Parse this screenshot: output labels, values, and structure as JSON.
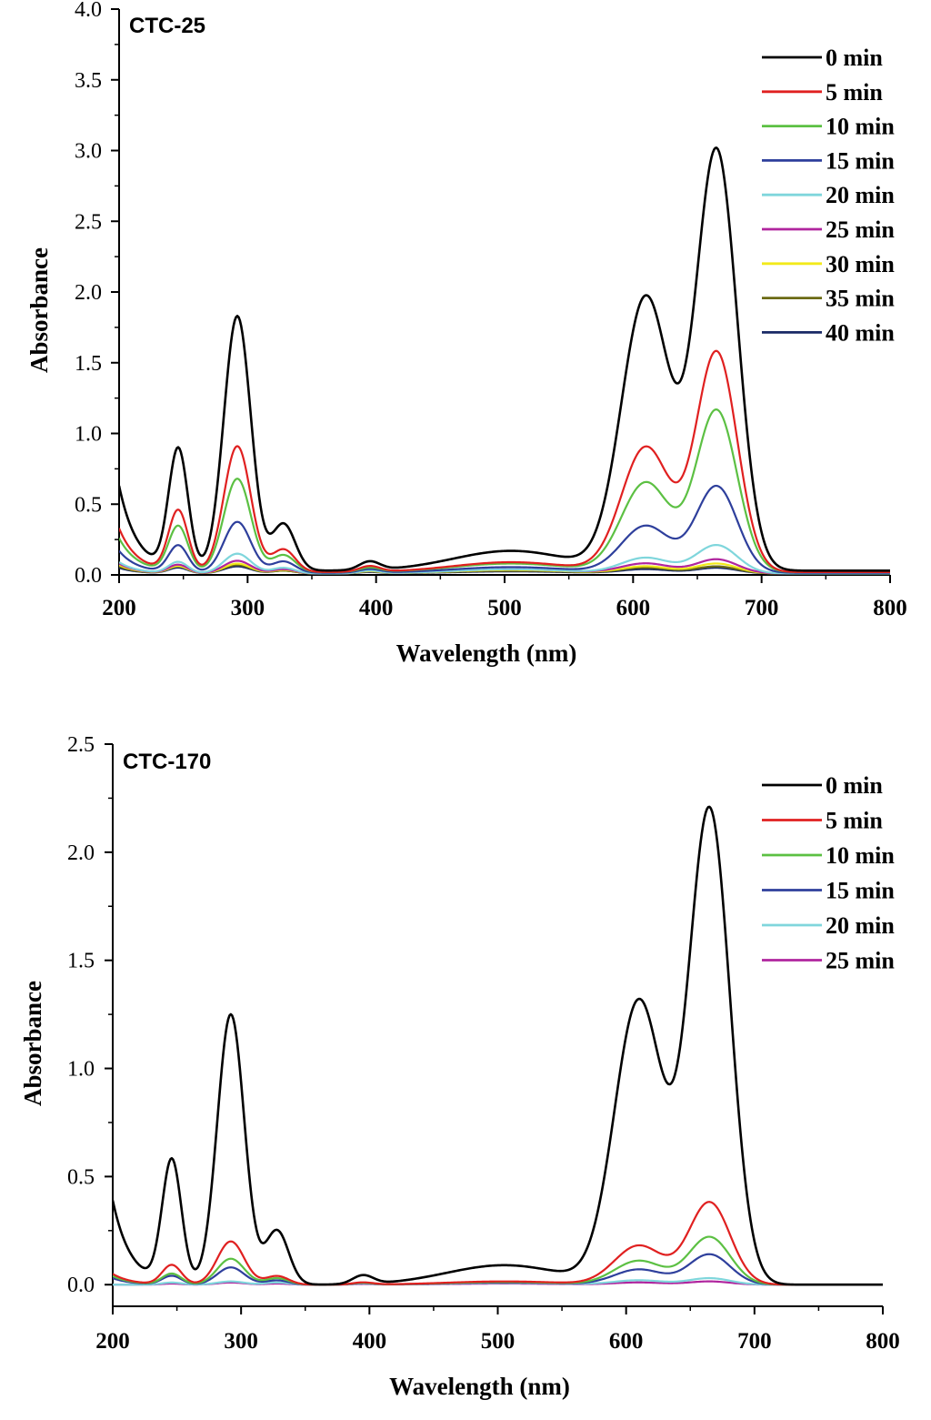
{
  "colors": {
    "0 min": "#000000",
    "5 min": "#e02020",
    "10 min": "#5cc043",
    "15 min": "#2e3f9c",
    "20 min": "#7fd6dc",
    "25 min": "#b0259e",
    "30 min": "#f2ea1a",
    "35 min": "#6b6a14",
    "40 min": "#1a2a66"
  },
  "chart_data": [
    {
      "type": "line",
      "panel_label": "CTC-25",
      "xlabel": "Wavelength (nm)",
      "ylabel": "Absorbance",
      "xlim": [
        200,
        800
      ],
      "ylim": [
        0,
        4.0
      ],
      "xticks": [
        "200",
        "300",
        "400",
        "500",
        "600",
        "700",
        "800"
      ],
      "yticks": [
        "0.0",
        "0.5",
        "1.0",
        "1.5",
        "2.0",
        "2.5",
        "3.0",
        "3.5",
        "4.0"
      ],
      "legend_position": "top-right",
      "grid": false,
      "series": [
        {
          "name": "0 min",
          "peaks": {
            "base": 0.03,
            "start": 0.63,
            "p245": 0.85,
            "p292": 1.8,
            "p330": 0.33,
            "p395": 0.06,
            "p500": 0.14,
            "p612": 1.93,
            "p663": 2.96
          }
        },
        {
          "name": "5 min",
          "peaks": {
            "base": 0.02,
            "start": 0.33,
            "p245": 0.43,
            "p292": 0.89,
            "p330": 0.16,
            "p395": 0.04,
            "p500": 0.07,
            "p612": 0.88,
            "p663": 1.55
          }
        },
        {
          "name": "10 min",
          "peaks": {
            "base": 0.02,
            "start": 0.26,
            "p245": 0.32,
            "p292": 0.66,
            "p330": 0.12,
            "p395": 0.03,
            "p500": 0.06,
            "p612": 0.63,
            "p663": 1.14
          }
        },
        {
          "name": "15 min",
          "peaks": {
            "base": 0.015,
            "start": 0.17,
            "p245": 0.19,
            "p292": 0.36,
            "p330": 0.08,
            "p395": 0.025,
            "p500": 0.04,
            "p612": 0.33,
            "p663": 0.61
          }
        },
        {
          "name": "20 min",
          "peaks": {
            "base": 0.01,
            "start": 0.09,
            "p245": 0.08,
            "p292": 0.14,
            "p330": 0.04,
            "p395": 0.02,
            "p500": 0.03,
            "p612": 0.11,
            "p663": 0.2
          }
        },
        {
          "name": "25 min",
          "peaks": {
            "base": 0.01,
            "start": 0.08,
            "p245": 0.06,
            "p292": 0.09,
            "p330": 0.03,
            "p395": 0.02,
            "p500": 0.03,
            "p612": 0.07,
            "p663": 0.1
          }
        },
        {
          "name": "30 min",
          "peaks": {
            "base": 0.01,
            "start": 0.07,
            "p245": 0.05,
            "p292": 0.07,
            "p330": 0.025,
            "p395": 0.015,
            "p500": 0.025,
            "p612": 0.05,
            "p663": 0.07
          }
        },
        {
          "name": "35 min",
          "peaks": {
            "base": 0.01,
            "start": 0.06,
            "p245": 0.05,
            "p292": 0.06,
            "p330": 0.02,
            "p395": 0.015,
            "p500": 0.02,
            "p612": 0.04,
            "p663": 0.05
          }
        },
        {
          "name": "40 min",
          "peaks": {
            "base": 0.01,
            "start": 0.05,
            "p245": 0.04,
            "p292": 0.05,
            "p330": 0.02,
            "p395": 0.01,
            "p500": 0.015,
            "p612": 0.03,
            "p663": 0.04
          }
        }
      ]
    },
    {
      "type": "line",
      "panel_label": "CTC-170",
      "xlabel": "Wavelength (nm)",
      "ylabel": "Absorbance",
      "xlim": [
        200,
        800
      ],
      "ylim": [
        -0.1,
        2.5
      ],
      "xticks": [
        "200",
        "300",
        "400",
        "500",
        "600",
        "700",
        "800"
      ],
      "yticks": [
        "0.0",
        "0.5",
        "1.0",
        "1.5",
        "2.0",
        "2.5"
      ],
      "legend_position": "top-right",
      "grid": false,
      "series": [
        {
          "name": "0 min",
          "peaks": {
            "base": 0.0,
            "start": 0.39,
            "p245": 0.57,
            "p292": 1.25,
            "p330": 0.25,
            "p395": 0.04,
            "p500": 0.09,
            "p612": 1.31,
            "p663": 2.19
          }
        },
        {
          "name": "5 min",
          "peaks": {
            "base": 0.0,
            "start": 0.05,
            "p245": 0.09,
            "p292": 0.2,
            "p330": 0.04,
            "p395": 0.01,
            "p500": 0.015,
            "p612": 0.18,
            "p663": 0.38
          }
        },
        {
          "name": "10 min",
          "peaks": {
            "base": 0.0,
            "start": 0.04,
            "p245": 0.05,
            "p292": 0.12,
            "p330": 0.03,
            "p395": 0.008,
            "p500": 0.012,
            "p612": 0.11,
            "p663": 0.22
          }
        },
        {
          "name": "15 min",
          "peaks": {
            "base": 0.0,
            "start": 0.03,
            "p245": 0.04,
            "p292": 0.08,
            "p330": 0.02,
            "p395": 0.007,
            "p500": 0.01,
            "p612": 0.07,
            "p663": 0.14
          }
        },
        {
          "name": "20 min",
          "peaks": {
            "base": 0.0,
            "start": 0.0,
            "p245": 0.01,
            "p292": 0.015,
            "p330": 0.01,
            "p395": 0.005,
            "p500": 0.008,
            "p612": 0.02,
            "p663": 0.03
          }
        },
        {
          "name": "25 min",
          "peaks": {
            "base": 0.0,
            "start": -0.01,
            "p245": 0.005,
            "p292": 0.01,
            "p330": 0.005,
            "p395": 0.003,
            "p500": 0.005,
            "p612": 0.01,
            "p663": 0.015
          }
        }
      ]
    }
  ]
}
